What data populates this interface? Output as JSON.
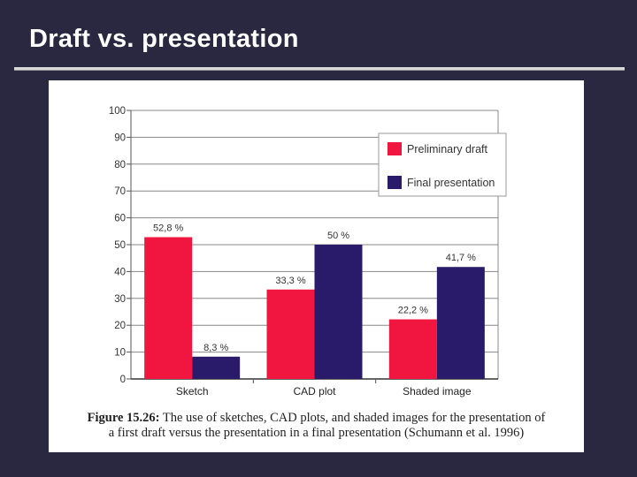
{
  "slide": {
    "title": "Draft vs. presentation"
  },
  "caption": {
    "label": "Figure 15.26:",
    "text": " The use of sketches, CAD plots, and shaded images for the presentation of",
    "line2": "a first draft versus the presentation in a final presentation (Schumann et al. 1996)"
  },
  "chart_data": {
    "type": "bar",
    "title": "",
    "xlabel": "",
    "ylabel": "",
    "ylim": [
      0,
      100
    ],
    "yticks": [
      "0",
      "10",
      "20",
      "30",
      "40",
      "50",
      "60",
      "70",
      "80",
      "90",
      "100"
    ],
    "grid": true,
    "legend_position": "top-right",
    "categories": [
      "Sketch",
      "CAD plot",
      "Shaded image"
    ],
    "series": [
      {
        "name": "Preliminary draft",
        "color": "#f0163f",
        "values": [
          52.8,
          33.3,
          22.2
        ],
        "labels": [
          "52,8 %",
          "33,3 %",
          "22,2 %"
        ]
      },
      {
        "name": "Final presentation",
        "color": "#2a1a6a",
        "values": [
          8.3,
          50,
          41.7
        ],
        "labels": [
          "8,3 %",
          "50 %",
          "41,7 %"
        ]
      }
    ]
  }
}
